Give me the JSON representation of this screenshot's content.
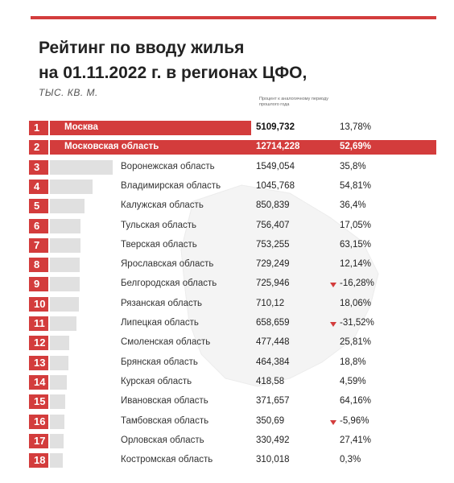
{
  "header": {
    "title_line1": "Рейтинг по вводу жилья",
    "title_line2": "на 01.11.2022 г. в регионах ЦФО,",
    "subtitle": "ТЫС. КВ. М.",
    "col_header": "Процент к аналогичному периоду прошлого года"
  },
  "colors": {
    "accent": "#d33c3c",
    "bar": "#e0e0e0"
  },
  "chart_data": {
    "type": "bar",
    "title": "Рейтинг по вводу жилья на 01.11.2022 г. в регионах ЦФО, ТЫС. КВ. М.",
    "ranks": [
      "1",
      "2",
      "3",
      "4",
      "5",
      "6",
      "7",
      "8",
      "9",
      "10",
      "11",
      "12",
      "13",
      "14",
      "15",
      "16",
      "17",
      "18"
    ],
    "categories": [
      "Москва",
      "Московская область",
      "Воронежская область",
      "Владимирская область",
      "Калужская область",
      "Тульская область",
      "Тверская область",
      "Ярославская область",
      "Белгородская область",
      "Рязанская область",
      "Липецкая область",
      "Смоленская область",
      "Брянская область",
      "Курская область",
      "Ивановская область",
      "Тамбовская область",
      "Орловская область",
      "Костромская область"
    ],
    "values": [
      5109.732,
      12714.228,
      1549.054,
      1045.768,
      850.839,
      756.407,
      753.255,
      729.249,
      725.946,
      710.12,
      658.659,
      477.448,
      464.384,
      418.58,
      371.657,
      350.69,
      330.492,
      310.018
    ],
    "value_labels": [
      "5109,732",
      "12714,228",
      "1549,054",
      "1045,768",
      "850,839",
      "756,407",
      "753,255",
      "729,249",
      "725,946",
      "710,12",
      "658,659",
      "477,448",
      "464,384",
      "418,58",
      "371,657",
      "350,69",
      "330,492",
      "310,018"
    ],
    "pct_labels": [
      "13,78%",
      "52,69%",
      "35,8%",
      "54,81%",
      "36,4%",
      "17,05%",
      "63,15%",
      "12,14%",
      "-16,28%",
      "18,06%",
      "-31,52%",
      "25,81%",
      "18,8%",
      "4,59%",
      "64,16%",
      "-5,96%",
      "27,41%",
      "0,3%"
    ],
    "pct_values": [
      13.78,
      52.69,
      35.8,
      54.81,
      36.4,
      17.05,
      63.15,
      12.14,
      -16.28,
      18.06,
      -31.52,
      25.81,
      18.8,
      4.59,
      64.16,
      -5.96,
      27.41,
      0.3
    ],
    "xlabel": "",
    "ylabel": ""
  }
}
